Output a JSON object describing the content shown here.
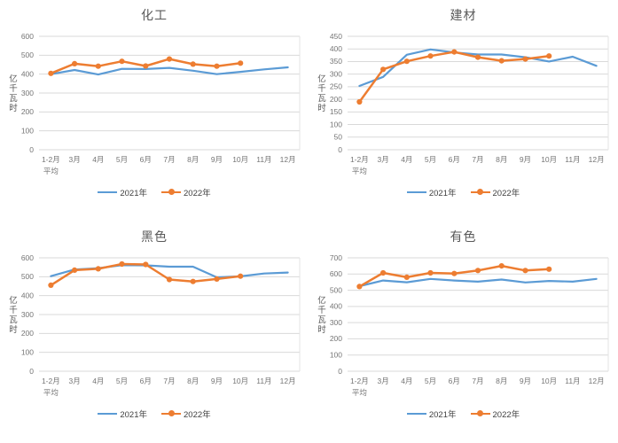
{
  "page": {
    "background": "#FFFFFF"
  },
  "colors": {
    "grid": "#D9D9D9",
    "plot_border": "#E3E3E3",
    "tick_text": "#757575",
    "axis_title_text": "#595959",
    "chart_title_text": "#595959",
    "legend_text": "#404040",
    "series_2021": "#5B9BD5",
    "series_2022": "#ED7D31"
  },
  "chart_data": [
    {
      "type": "line",
      "title": "化工",
      "ylabel": "亿千瓦时",
      "xlabel": "",
      "categories": [
        "1-2月\n平均",
        "3月",
        "4月",
        "5月",
        "6月",
        "7月",
        "8月",
        "9月",
        "10月",
        "11月",
        "12月"
      ],
      "ylim": [
        0,
        600
      ],
      "ytick_step": 100,
      "grid": true,
      "legend_position": "bottom",
      "series": [
        {
          "name": "2021年",
          "color": "#5B9BD5",
          "marker": "none",
          "values": [
            400,
            422,
            398,
            428,
            427,
            433,
            418,
            400,
            412,
            425,
            436
          ]
        },
        {
          "name": "2022年",
          "color": "#ED7D31",
          "marker": "circle",
          "values": [
            404,
            455,
            442,
            468,
            443,
            480,
            453,
            442,
            458,
            null,
            null
          ]
        }
      ]
    },
    {
      "type": "line",
      "title": "建材",
      "ylabel": "亿千瓦时",
      "xlabel": "",
      "categories": [
        "1-2月\n平均",
        "3月",
        "4月",
        "5月",
        "6月",
        "7月",
        "8月",
        "9月",
        "10月",
        "11月",
        "12月"
      ],
      "ylim": [
        0,
        450
      ],
      "ytick_step": 50,
      "grid": true,
      "legend_position": "bottom",
      "series": [
        {
          "name": "2021年",
          "color": "#5B9BD5",
          "marker": "none",
          "values": [
            253,
            289,
            377,
            398,
            386,
            378,
            378,
            367,
            350,
            369,
            333
          ]
        },
        {
          "name": "2022年",
          "color": "#ED7D31",
          "marker": "circle",
          "values": [
            190,
            319,
            351,
            372,
            388,
            367,
            353,
            360,
            372,
            null,
            null
          ]
        }
      ]
    },
    {
      "type": "line",
      "title": "黑色",
      "ylabel": "亿千瓦时",
      "xlabel": "",
      "categories": [
        "1-2月\n平均",
        "3月",
        "4月",
        "5月",
        "6月",
        "7月",
        "8月",
        "9月",
        "10月",
        "11月",
        "12月"
      ],
      "ylim": [
        0,
        600
      ],
      "ytick_step": 100,
      "grid": true,
      "legend_position": "bottom",
      "series": [
        {
          "name": "2021年",
          "color": "#5B9BD5",
          "marker": "none",
          "values": [
            503,
            538,
            545,
            561,
            560,
            553,
            553,
            497,
            502,
            517,
            522
          ]
        },
        {
          "name": "2022年",
          "color": "#ED7D31",
          "marker": "circle",
          "values": [
            455,
            535,
            542,
            567,
            565,
            485,
            475,
            488,
            503,
            null,
            null
          ]
        }
      ]
    },
    {
      "type": "line",
      "title": "有色",
      "ylabel": "亿千瓦时",
      "xlabel": "",
      "categories": [
        "1-2月\n平均",
        "3月",
        "4月",
        "5月",
        "6月",
        "7月",
        "8月",
        "9月",
        "10月",
        "11月",
        "12月"
      ],
      "ylim": [
        0,
        700
      ],
      "ytick_step": 100,
      "grid": true,
      "legend_position": "bottom",
      "series": [
        {
          "name": "2021年",
          "color": "#5B9BD5",
          "marker": "none",
          "values": [
            525,
            560,
            549,
            570,
            560,
            553,
            566,
            548,
            557,
            553,
            570
          ]
        },
        {
          "name": "2022年",
          "color": "#ED7D31",
          "marker": "circle",
          "values": [
            523,
            607,
            580,
            607,
            603,
            622,
            650,
            622,
            630,
            null,
            null
          ]
        }
      ]
    }
  ]
}
